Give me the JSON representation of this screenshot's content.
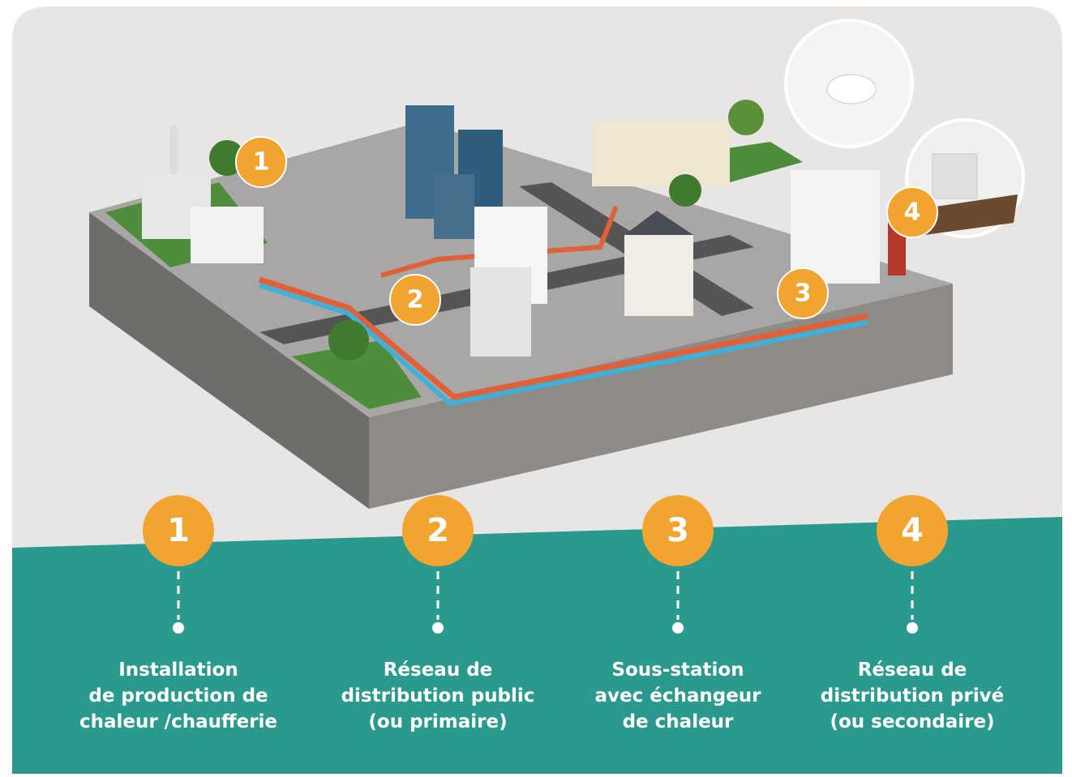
{
  "steps": [
    {
      "number": "1",
      "lines": [
        "Installation",
        "de production de",
        "chaleur /chaufferie"
      ]
    },
    {
      "number": "2",
      "lines": [
        "Réseau de",
        "distribution public",
        "(ou primaire)"
      ]
    },
    {
      "number": "3",
      "lines": [
        "Sous-station",
        "avec échangeur",
        "de chaleur"
      ]
    },
    {
      "number": "4",
      "lines": [
        "Réseau de",
        "distribution privé",
        "(ou secondaire)"
      ]
    }
  ]
}
